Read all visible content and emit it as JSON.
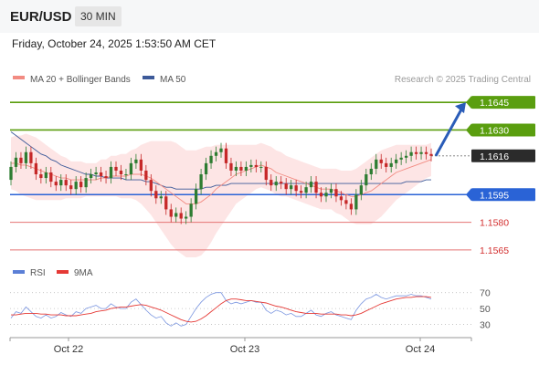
{
  "header": {
    "symbol": "EUR/USD",
    "timeframe": "30 MIN"
  },
  "timestamp": "Friday, October 24, 2025 1:53:50 AM CET",
  "credit": "Research © 2025 Trading Central",
  "legend": [
    {
      "label": "MA 20 + Bollinger Bands",
      "color": "#f28b82"
    },
    {
      "label": "MA 50",
      "color": "#3d5a99"
    }
  ],
  "rsi_legend": [
    {
      "label": "RSI",
      "color": "#5b7fd6"
    },
    {
      "label": "9MA",
      "color": "#e53935"
    }
  ],
  "colors": {
    "up": "#2e7d32",
    "down": "#c62828",
    "green_level": "#5a9e0f",
    "blue_level": "#2a63d6",
    "red_level": "#e57373",
    "arrow": "#2a5cb8"
  },
  "chart_data": {
    "type": "candlestick",
    "x_labels": [
      "Oct 22",
      "Oct 23",
      "Oct 24"
    ],
    "ylim": [
      1.1561,
      1.1652
    ],
    "current_price": 1.1616,
    "levels": [
      {
        "price": 1.1645,
        "label": "1.1645",
        "style": "green",
        "boxed": true
      },
      {
        "price": 1.163,
        "label": "1.1630",
        "style": "green",
        "boxed": true
      },
      {
        "price": 1.1616,
        "label": "1.1616",
        "style": "current",
        "boxed": true
      },
      {
        "price": 1.1595,
        "label": "1.1595",
        "style": "blue",
        "boxed": true
      },
      {
        "price": 1.158,
        "label": "1.1580",
        "style": "red",
        "boxed": false
      },
      {
        "price": 1.1565,
        "label": "1.1565",
        "style": "red",
        "boxed": false
      }
    ],
    "arrow": {
      "from": 1.1616,
      "to": 1.1645
    },
    "closes": [
      1.161,
      1.1615,
      1.1612,
      1.1618,
      1.1612,
      1.1606,
      1.1604,
      1.1607,
      1.1602,
      1.16,
      1.1603,
      1.16,
      1.1598,
      1.1602,
      1.1599,
      1.1604,
      1.1606,
      1.1607,
      1.1605,
      1.1604,
      1.161,
      1.1608,
      1.1606,
      1.1606,
      1.1612,
      1.1614,
      1.1608,
      1.1603,
      1.1597,
      1.1593,
      1.1594,
      1.1587,
      1.1583,
      1.1585,
      1.1582,
      1.1583,
      1.159,
      1.1598,
      1.1606,
      1.1612,
      1.1616,
      1.1618,
      1.162,
      1.1612,
      1.1608,
      1.161,
      1.1608,
      1.161,
      1.1611,
      1.161,
      1.161,
      1.1603,
      1.16,
      1.1602,
      1.1601,
      1.1598,
      1.16,
      1.1597,
      1.1596,
      1.1599,
      1.1602,
      1.1596,
      1.1594,
      1.1596,
      1.1598,
      1.1594,
      1.1592,
      1.159,
      1.1587,
      1.1595,
      1.16,
      1.1606,
      1.1609,
      1.1614,
      1.1612,
      1.161,
      1.1612,
      1.1614,
      1.1615,
      1.1616,
      1.1618,
      1.1617,
      1.1618,
      1.1617,
      1.1616
    ],
    "opens": [
      1.1603,
      1.161,
      1.1615,
      1.1612,
      1.1618,
      1.1612,
      1.1606,
      1.1604,
      1.1607,
      1.1602,
      1.16,
      1.1603,
      1.16,
      1.1598,
      1.1602,
      1.1599,
      1.1604,
      1.1606,
      1.1607,
      1.1605,
      1.1604,
      1.161,
      1.1608,
      1.1606,
      1.1606,
      1.1612,
      1.1614,
      1.1608,
      1.1603,
      1.1597,
      1.1593,
      1.1594,
      1.1587,
      1.1583,
      1.1585,
      1.1582,
      1.1583,
      1.159,
      1.1598,
      1.1606,
      1.1612,
      1.1616,
      1.1618,
      1.162,
      1.1612,
      1.1608,
      1.161,
      1.1608,
      1.161,
      1.1611,
      1.161,
      1.161,
      1.1603,
      1.16,
      1.1602,
      1.1601,
      1.1598,
      1.16,
      1.1597,
      1.1596,
      1.1599,
      1.1602,
      1.1596,
      1.1594,
      1.1596,
      1.1598,
      1.1594,
      1.1592,
      1.159,
      1.1587,
      1.1595,
      1.16,
      1.1606,
      1.1609,
      1.1614,
      1.1612,
      1.161,
      1.1612,
      1.1614,
      1.1615,
      1.1616,
      1.1618,
      1.1617,
      1.1618,
      1.1617
    ],
    "ma20": [
      1.1612,
      1.1612,
      1.1611,
      1.1611,
      1.161,
      1.1609,
      1.1608,
      1.1607,
      1.1606,
      1.1605,
      1.1604,
      1.1604,
      1.1603,
      1.1603,
      1.1603,
      1.1603,
      1.1603,
      1.1603,
      1.1604,
      1.1604,
      1.1605,
      1.1605,
      1.1605,
      1.1605,
      1.1606,
      1.1606,
      1.1606,
      1.1605,
      1.1604,
      1.1602,
      1.16,
      1.1598,
      1.1596,
      1.1594,
      1.1592,
      1.159,
      1.159,
      1.159,
      1.1591,
      1.1593,
      1.1595,
      1.1598,
      1.16,
      1.1602,
      1.1604,
      1.1606,
      1.1607,
      1.1608,
      1.1609,
      1.161,
      1.1611,
      1.161,
      1.1609,
      1.1607,
      1.1606,
      1.1605,
      1.1604,
      1.1603,
      1.1602,
      1.1601,
      1.16,
      1.1599,
      1.1598,
      1.1598,
      1.1598,
      1.1597,
      1.1596,
      1.1595,
      1.1594,
      1.1594,
      1.1595,
      1.1596,
      1.1597,
      1.1599,
      1.1601,
      1.1603,
      1.1605,
      1.1607,
      1.1608,
      1.1609,
      1.161,
      1.1611,
      1.1612,
      1.1613,
      1.1614
    ],
    "ma50": [
      1.1629,
      1.1627,
      1.1625,
      1.1623,
      1.1621,
      1.1619,
      1.1617,
      1.1616,
      1.1614,
      1.1613,
      1.1611,
      1.161,
      1.1609,
      1.1608,
      1.1607,
      1.1606,
      1.1606,
      1.1605,
      1.1605,
      1.1604,
      1.1604,
      1.1604,
      1.1604,
      1.1603,
      1.1603,
      1.1603,
      1.1603,
      1.1602,
      1.1602,
      1.1601,
      1.16,
      1.1599,
      1.1599,
      1.1598,
      1.1598,
      1.1598,
      1.1598,
      1.1598,
      1.1598,
      1.1599,
      1.1599,
      1.16,
      1.16,
      1.16,
      1.1601,
      1.1601,
      1.1601,
      1.1601,
      1.1601,
      1.1601,
      1.1601,
      1.1601,
      1.1601,
      1.1601,
      1.1601,
      1.1601,
      1.1601,
      1.1601,
      1.1601,
      1.1601,
      1.1601,
      1.1601,
      1.1601,
      1.1601,
      1.1601,
      1.1601,
      1.1601,
      1.1601,
      1.1601,
      1.1601,
      1.1601,
      1.1601,
      1.1601,
      1.1601,
      1.1601,
      1.1601,
      1.1601,
      1.1601,
      1.1601,
      1.1602,
      1.1602,
      1.1602,
      1.1602,
      1.1603,
      1.1603
    ],
    "bb_width": [
      0.0014,
      0.0015,
      0.0016,
      0.0017,
      0.0017,
      0.0017,
      0.0016,
      0.0015,
      0.0014,
      0.0013,
      0.0012,
      0.0011,
      0.001,
      0.001,
      0.001,
      0.0009,
      0.0009,
      0.0009,
      0.001,
      0.001,
      0.0011,
      0.0011,
      0.0012,
      0.0012,
      0.0013,
      0.0014,
      0.0016,
      0.0018,
      0.002,
      0.0022,
      0.0024,
      0.0026,
      0.0028,
      0.0029,
      0.0029,
      0.0029,
      0.0029,
      0.0029,
      0.0029,
      0.0028,
      0.0026,
      0.0024,
      0.0022,
      0.002,
      0.0018,
      0.0016,
      0.0015,
      0.0014,
      0.0013,
      0.0012,
      0.0012,
      0.0012,
      0.0012,
      0.0012,
      0.0012,
      0.0011,
      0.0011,
      0.0011,
      0.0011,
      0.0011,
      0.0011,
      0.0011,
      0.0011,
      0.0011,
      0.0011,
      0.0012,
      0.0012,
      0.0013,
      0.0014,
      0.0015,
      0.0016,
      0.0017,
      0.0018,
      0.0018,
      0.0018,
      0.0017,
      0.0016,
      0.0015,
      0.0014,
      0.0013,
      0.0012,
      0.0011,
      0.001,
      0.0009,
      0.0009
    ],
    "rsi": {
      "ticks": [
        70,
        50,
        30
      ],
      "ylim": [
        18,
        80
      ],
      "values": [
        38,
        46,
        44,
        52,
        46,
        40,
        38,
        42,
        38,
        40,
        45,
        42,
        40,
        46,
        44,
        50,
        52,
        54,
        50,
        50,
        56,
        52,
        50,
        50,
        58,
        62,
        55,
        48,
        42,
        38,
        40,
        32,
        28,
        32,
        28,
        30,
        40,
        50,
        58,
        64,
        68,
        70,
        70,
        60,
        56,
        58,
        56,
        58,
        60,
        58,
        58,
        48,
        44,
        48,
        46,
        42,
        44,
        40,
        40,
        44,
        48,
        42,
        40,
        44,
        46,
        42,
        40,
        38,
        36,
        48,
        56,
        62,
        64,
        68,
        64,
        62,
        64,
        66,
        66,
        66,
        68,
        66,
        66,
        64,
        62
      ],
      "ma9": [
        42,
        42,
        43,
        44,
        44,
        44,
        43,
        43,
        42,
        42,
        42,
        41,
        41,
        41,
        42,
        43,
        44,
        46,
        47,
        48,
        50,
        51,
        52,
        52,
        53,
        54,
        55,
        54,
        52,
        50,
        48,
        45,
        42,
        39,
        36,
        34,
        33,
        34,
        37,
        41,
        46,
        51,
        56,
        60,
        62,
        62,
        61,
        60,
        60,
        59,
        58,
        57,
        55,
        53,
        52,
        50,
        48,
        46,
        45,
        44,
        44,
        44,
        43,
        43,
        43,
        43,
        42,
        42,
        41,
        42,
        44,
        47,
        50,
        53,
        56,
        58,
        60,
        62,
        63,
        64,
        64,
        65,
        65,
        65,
        64
      ]
    }
  }
}
